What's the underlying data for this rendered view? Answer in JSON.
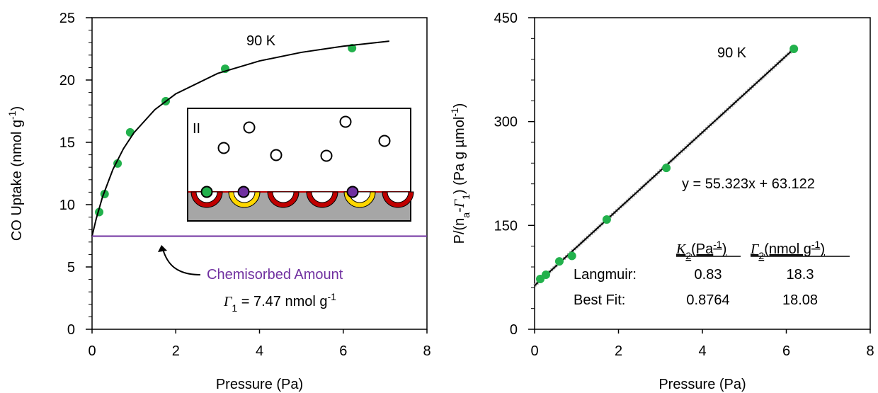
{
  "chart_data": [
    {
      "type": "scatter",
      "xlabel": "Pressure (Pa)",
      "ylabel": [
        "CO Uptake (nmol g",
        "-1",
        ")"
      ],
      "xlim": [
        0,
        8
      ],
      "xticks": [
        0,
        2,
        4,
        6,
        8
      ],
      "ylim": [
        0,
        25
      ],
      "yticks": [
        0,
        5,
        10,
        15,
        20,
        25
      ],
      "y_minor_step": 1,
      "series": [
        {
          "mode": "markers",
          "color": "#22b14c",
          "x": [
            0.17,
            0.3,
            0.61,
            0.91,
            1.76,
            3.18,
            6.21
          ],
          "values": [
            9.4,
            10.85,
            13.3,
            15.8,
            18.3,
            20.9,
            22.56
          ]
        },
        {
          "mode": "line",
          "color": "#000000",
          "x": [
            0,
            0.1,
            0.25,
            0.5,
            0.75,
            1,
            1.5,
            2,
            3,
            4,
            5,
            6,
            7.1
          ],
          "values": [
            7.47,
            8.87,
            10.62,
            12.84,
            14.49,
            15.77,
            17.62,
            18.89,
            20.53,
            21.53,
            22.22,
            22.71,
            23.12
          ]
        },
        {
          "mode": "line",
          "color": "#7030a0",
          "x": [
            0,
            8
          ],
          "values": [
            7.47,
            7.47
          ]
        }
      ],
      "annotations": [
        "90 K",
        "Chemisorbed Amount",
        [
          "Γ",
          "1",
          " = 7.47 nmol g",
          "-1"
        ]
      ],
      "inset_label": "II"
    },
    {
      "type": "scatter",
      "xlabel": "Pressure (Pa)",
      "ylabel": [
        "P/(n",
        "a",
        "-",
        "Γ",
        "1",
        ") (Pa g µmol",
        "-1",
        ")"
      ],
      "xlim": [
        0,
        8
      ],
      "xticks": [
        0,
        2,
        4,
        6,
        8
      ],
      "ylim": [
        0,
        450
      ],
      "yticks": [
        0,
        150,
        300,
        450
      ],
      "y_minor_step": 30,
      "series": [
        {
          "mode": "line",
          "color": "#a6a6a6",
          "x": [
            0,
            6.18
          ],
          "values": [
            63.122,
            405.04
          ]
        },
        {
          "mode": "line",
          "color": "#000000",
          "x": [
            0,
            6.18
          ],
          "values": [
            63.122,
            405.04
          ]
        },
        {
          "mode": "markers",
          "color": "#22b14c",
          "x": [
            0.135,
            0.27,
            0.59,
            0.89,
            1.72,
            3.14,
            6.18
          ],
          "values": [
            72.6,
            78.7,
            98,
            106,
            158.5,
            233,
            405
          ]
        }
      ],
      "annotations": [
        "90 K",
        "y = 55.323x + 63.122"
      ],
      "table": {
        "headers": [
          [
            "K",
            "2",
            "(Pa",
            "-1",
            ")"
          ],
          [
            "Γ",
            "2",
            "(nmol g",
            "-1",
            ")"
          ]
        ],
        "rows": [
          [
            "Langmuir:",
            "0.83",
            "18.3"
          ],
          [
            "Best Fit:",
            "0.8764",
            "18.08"
          ]
        ]
      }
    }
  ]
}
